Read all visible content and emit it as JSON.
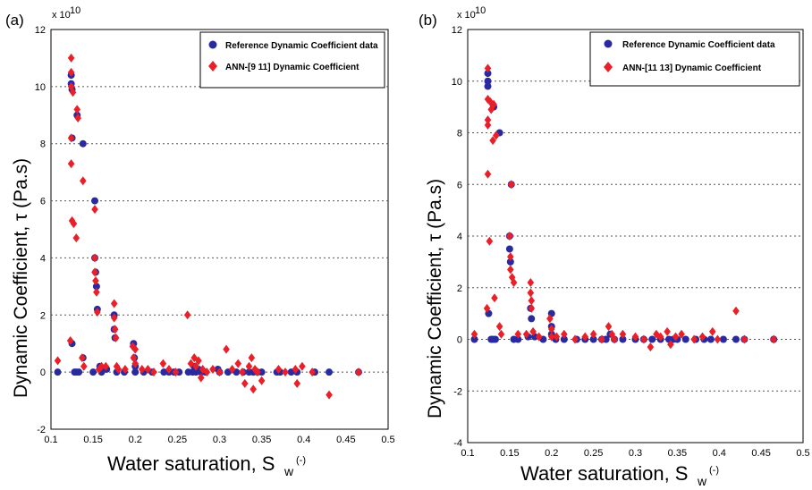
{
  "chart_data": [
    {
      "type": "scatter",
      "panel_label": "(a)",
      "exponent": "x 10",
      "exponent_power": "10",
      "xlabel": "Water saturation, S",
      "xlabel_sub": "w",
      "xlabel_unit": "(-)",
      "ylabel": "Dynamic Coefficient, τ (Pa.s)",
      "xlim": [
        0.1,
        0.5
      ],
      "ylim": [
        -2,
        12
      ],
      "xticks": [
        "0.1",
        "0.15",
        "0.2",
        "0.25",
        "0.3",
        "0.35",
        "0.4",
        "0.45",
        "0.5"
      ],
      "yticks": [
        "-2",
        "0",
        "2",
        "4",
        "6",
        "8",
        "10",
        "12"
      ],
      "grid": "dotted horizontal",
      "legend_position": "top-right",
      "series": [
        {
          "name": "Reference Dynamic Coefficient data",
          "marker": "circle",
          "color": "#2a2aa0",
          "points": [
            [
              0.108,
              0
            ],
            [
              0.124,
              10.4
            ],
            [
              0.124,
              10.1
            ],
            [
              0.125,
              9.9
            ],
            [
              0.125,
              8.2
            ],
            [
              0.125,
              1.0
            ],
            [
              0.128,
              0
            ],
            [
              0.13,
              0
            ],
            [
              0.131,
              9.0
            ],
            [
              0.133,
              0
            ],
            [
              0.138,
              8.0
            ],
            [
              0.138,
              0.5
            ],
            [
              0.15,
              0
            ],
            [
              0.152,
              6.0
            ],
            [
              0.152,
              4.0
            ],
            [
              0.153,
              3.5
            ],
            [
              0.154,
              3.0
            ],
            [
              0.155,
              2.2
            ],
            [
              0.158,
              0.2
            ],
            [
              0.16,
              0
            ],
            [
              0.166,
              0.1
            ],
            [
              0.175,
              2.0
            ],
            [
              0.175,
              1.5
            ],
            [
              0.176,
              1.2
            ],
            [
              0.178,
              0
            ],
            [
              0.187,
              0
            ],
            [
              0.198,
              1.0
            ],
            [
              0.199,
              0.5
            ],
            [
              0.2,
              0.2
            ],
            [
              0.2,
              0
            ],
            [
              0.21,
              0
            ],
            [
              0.22,
              0
            ],
            [
              0.234,
              0
            ],
            [
              0.24,
              0
            ],
            [
              0.246,
              0
            ],
            [
              0.252,
              0
            ],
            [
              0.263,
              0
            ],
            [
              0.268,
              0
            ],
            [
              0.27,
              0.2
            ],
            [
              0.272,
              0
            ],
            [
              0.275,
              0.1
            ],
            [
              0.278,
              0
            ],
            [
              0.283,
              0
            ],
            [
              0.298,
              0.1
            ],
            [
              0.3,
              0
            ],
            [
              0.31,
              0
            ],
            [
              0.32,
              0
            ],
            [
              0.328,
              0
            ],
            [
              0.335,
              0
            ],
            [
              0.34,
              0
            ],
            [
              0.345,
              0
            ],
            [
              0.35,
              0
            ],
            [
              0.368,
              0
            ],
            [
              0.372,
              0
            ],
            [
              0.385,
              0
            ],
            [
              0.392,
              0
            ],
            [
              0.413,
              0
            ],
            [
              0.43,
              0
            ],
            [
              0.465,
              0
            ]
          ]
        },
        {
          "name": "ANN-[9 11] Dynamic Coefficient",
          "marker": "diamond",
          "color": "#e8202a",
          "points": [
            [
              0.108,
              0.4
            ],
            [
              0.123,
              1.1
            ],
            [
              0.124,
              11.0
            ],
            [
              0.124,
              10.5
            ],
            [
              0.124,
              10.0
            ],
            [
              0.124,
              8.2
            ],
            [
              0.124,
              7.3
            ],
            [
              0.125,
              5.3
            ],
            [
              0.126,
              9.8
            ],
            [
              0.127,
              5.2
            ],
            [
              0.13,
              4.7
            ],
            [
              0.131,
              9.2
            ],
            [
              0.132,
              8.9
            ],
            [
              0.137,
              0.5
            ],
            [
              0.138,
              6.7
            ],
            [
              0.139,
              0.2
            ],
            [
              0.152,
              5.7
            ],
            [
              0.152,
              4.0
            ],
            [
              0.152,
              3.5
            ],
            [
              0.153,
              3.2
            ],
            [
              0.154,
              2.8
            ],
            [
              0.155,
              2.1
            ],
            [
              0.157,
              0.1
            ],
            [
              0.16,
              0.2
            ],
            [
              0.165,
              0.2
            ],
            [
              0.175,
              2.4
            ],
            [
              0.175,
              1.9
            ],
            [
              0.176,
              1.5
            ],
            [
              0.177,
              1.2
            ],
            [
              0.178,
              0.2
            ],
            [
              0.18,
              0.1
            ],
            [
              0.188,
              0.1
            ],
            [
              0.197,
              0.9
            ],
            [
              0.198,
              0.5
            ],
            [
              0.2,
              0.3
            ],
            [
              0.2,
              0.8
            ],
            [
              0.208,
              0.1
            ],
            [
              0.215,
              0.1
            ],
            [
              0.222,
              0
            ],
            [
              0.233,
              0.3
            ],
            [
              0.24,
              0.1
            ],
            [
              0.248,
              0
            ],
            [
              0.262,
              2.0
            ],
            [
              0.266,
              0.3
            ],
            [
              0.27,
              0.5
            ],
            [
              0.272,
              0.2
            ],
            [
              0.275,
              0.4
            ],
            [
              0.278,
              -0.2
            ],
            [
              0.28,
              0.1
            ],
            [
              0.285,
              0
            ],
            [
              0.292,
              0.1
            ],
            [
              0.3,
              0
            ],
            [
              0.308,
              0.8
            ],
            [
              0.315,
              0.1
            ],
            [
              0.322,
              0.3
            ],
            [
              0.327,
              0
            ],
            [
              0.33,
              -0.4
            ],
            [
              0.335,
              0.2
            ],
            [
              0.338,
              0.5
            ],
            [
              0.34,
              -0.6
            ],
            [
              0.342,
              0.1
            ],
            [
              0.345,
              0
            ],
            [
              0.35,
              -0.3
            ],
            [
              0.37,
              0.1
            ],
            [
              0.378,
              0
            ],
            [
              0.39,
              0.1
            ],
            [
              0.392,
              -0.4
            ],
            [
              0.398,
              0.2
            ],
            [
              0.41,
              0
            ],
            [
              0.43,
              -0.8
            ],
            [
              0.465,
              0
            ]
          ]
        }
      ]
    },
    {
      "type": "scatter",
      "panel_label": "(b)",
      "exponent": "x 10",
      "exponent_power": "10",
      "xlabel": "Water saturation, S",
      "xlabel_sub": "w",
      "xlabel_unit": "(-)",
      "ylabel": "Dynamic Coefficient, τ (Pa.s)",
      "xlim": [
        0.1,
        0.5
      ],
      "ylim": [
        -4,
        12
      ],
      "xticks": [
        "0.1",
        "0.15",
        "0.2",
        "0.25",
        "0.3",
        "0.35",
        "0.4",
        "0.45",
        "0.5"
      ],
      "yticks": [
        "-4",
        "-2",
        "0",
        "2",
        "4",
        "6",
        "8",
        "10",
        "12"
      ],
      "grid": "dotted horizontal",
      "legend_position": "top-right",
      "series": [
        {
          "name": "Reference Dynamic Coefficient data",
          "marker": "circle",
          "color": "#2a2aa0",
          "points": [
            [
              0.108,
              0
            ],
            [
              0.124,
              10.3
            ],
            [
              0.124,
              10.0
            ],
            [
              0.124,
              9.8
            ],
            [
              0.125,
              1.0
            ],
            [
              0.128,
              0
            ],
            [
              0.13,
              0
            ],
            [
              0.131,
              9.0
            ],
            [
              0.133,
              0
            ],
            [
              0.138,
              8.0
            ],
            [
              0.15,
              4.0
            ],
            [
              0.15,
              3.5
            ],
            [
              0.151,
              3.0
            ],
            [
              0.152,
              6.0
            ],
            [
              0.155,
              0
            ],
            [
              0.16,
              0
            ],
            [
              0.172,
              0.1
            ],
            [
              0.175,
              1.2
            ],
            [
              0.176,
              0.8
            ],
            [
              0.18,
              0.1
            ],
            [
              0.19,
              0
            ],
            [
              0.2,
              1.0
            ],
            [
              0.2,
              0.5
            ],
            [
              0.2,
              0.2
            ],
            [
              0.205,
              0
            ],
            [
              0.215,
              0
            ],
            [
              0.23,
              0
            ],
            [
              0.24,
              0
            ],
            [
              0.25,
              0
            ],
            [
              0.26,
              0
            ],
            [
              0.265,
              0
            ],
            [
              0.27,
              0.2
            ],
            [
              0.275,
              0
            ],
            [
              0.285,
              0
            ],
            [
              0.3,
              0
            ],
            [
              0.31,
              0
            ],
            [
              0.32,
              0
            ],
            [
              0.33,
              0
            ],
            [
              0.34,
              0
            ],
            [
              0.345,
              0
            ],
            [
              0.35,
              0
            ],
            [
              0.36,
              0
            ],
            [
              0.372,
              0
            ],
            [
              0.382,
              0
            ],
            [
              0.39,
              0
            ],
            [
              0.405,
              0
            ],
            [
              0.42,
              0
            ],
            [
              0.43,
              0
            ],
            [
              0.465,
              0
            ]
          ]
        },
        {
          "name": "ANN-[11 13] Dynamic Coefficient",
          "marker": "diamond",
          "color": "#e8202a",
          "points": [
            [
              0.108,
              0.2
            ],
            [
              0.123,
              1.2
            ],
            [
              0.124,
              10.5
            ],
            [
              0.124,
              9.3
            ],
            [
              0.124,
              8.5
            ],
            [
              0.124,
              8.3
            ],
            [
              0.124,
              6.4
            ],
            [
              0.126,
              3.8
            ],
            [
              0.127,
              9.2
            ],
            [
              0.128,
              8.9
            ],
            [
              0.13,
              7.7
            ],
            [
              0.131,
              9.1
            ],
            [
              0.132,
              1.6
            ],
            [
              0.134,
              7.9
            ],
            [
              0.138,
              0.5
            ],
            [
              0.14,
              0.2
            ],
            [
              0.15,
              4.0
            ],
            [
              0.151,
              3.2
            ],
            [
              0.151,
              2.7
            ],
            [
              0.152,
              6.0
            ],
            [
              0.153,
              2.4
            ],
            [
              0.155,
              2.2
            ],
            [
              0.16,
              0.2
            ],
            [
              0.17,
              0.2
            ],
            [
              0.175,
              2.2
            ],
            [
              0.175,
              1.8
            ],
            [
              0.176,
              1.5
            ],
            [
              0.176,
              1.2
            ],
            [
              0.178,
              0.3
            ],
            [
              0.185,
              0.1
            ],
            [
              0.198,
              0.8
            ],
            [
              0.2,
              0.4
            ],
            [
              0.2,
              0.1
            ],
            [
              0.206,
              0.1
            ],
            [
              0.215,
              0.2
            ],
            [
              0.228,
              0
            ],
            [
              0.24,
              0.1
            ],
            [
              0.25,
              0.2
            ],
            [
              0.26,
              0
            ],
            [
              0.268,
              0.5
            ],
            [
              0.272,
              0.2
            ],
            [
              0.275,
              0
            ],
            [
              0.285,
              0.2
            ],
            [
              0.3,
              0.1
            ],
            [
              0.31,
              0
            ],
            [
              0.318,
              -0.3
            ],
            [
              0.325,
              0.2
            ],
            [
              0.33,
              0.1
            ],
            [
              0.338,
              0.3
            ],
            [
              0.342,
              -0.2
            ],
            [
              0.348,
              0.1
            ],
            [
              0.355,
              0.2
            ],
            [
              0.37,
              0
            ],
            [
              0.38,
              0.1
            ],
            [
              0.392,
              0.3
            ],
            [
              0.398,
              0
            ],
            [
              0.42,
              1.1
            ],
            [
              0.43,
              0
            ],
            [
              0.465,
              0
            ]
          ]
        }
      ]
    }
  ]
}
